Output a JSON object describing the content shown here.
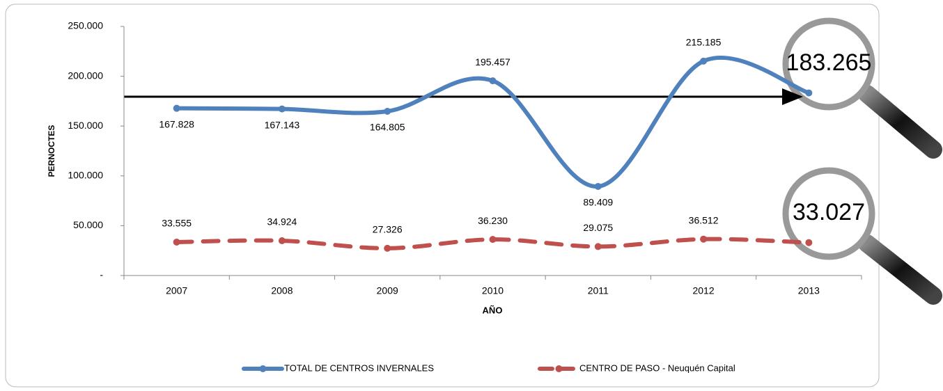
{
  "chart_data": {
    "type": "line",
    "x_label": "AÑO",
    "y_label": "PERNOCTES",
    "categories": [
      "2007",
      "2008",
      "2009",
      "2010",
      "2011",
      "2012",
      "2013"
    ],
    "series": [
      {
        "name": "TOTAL DE CENTROS INVERNALES",
        "color": "#4f81bd",
        "style": "solid",
        "values": [
          167828,
          167143,
          164805,
          195457,
          89409,
          215185,
          183265
        ],
        "value_labels": [
          "167.828",
          "167.143",
          "164.805",
          "195.457",
          "89.409",
          "215.185",
          "183.265"
        ]
      },
      {
        "name": "CENTRO DE PASO - Neuquén Capital",
        "color": "#c0504d",
        "style": "dashed",
        "values": [
          33555,
          34924,
          27326,
          36230,
          29075,
          36512,
          33027
        ],
        "value_labels": [
          "33.555",
          "34.924",
          "27.326",
          "36.230",
          "29.075",
          "36.512",
          "33.027"
        ]
      }
    ],
    "ylim": [
      0,
      250000
    ],
    "yticks": [
      {
        "value": 0,
        "label": "-"
      },
      {
        "value": 50000,
        "label": "50.000"
      },
      {
        "value": 100000,
        "label": "100.000"
      },
      {
        "value": 150000,
        "label": "150.000"
      },
      {
        "value": 200000,
        "label": "200.000"
      },
      {
        "value": 250000,
        "label": "250.000"
      }
    ],
    "legend": "bottom"
  }
}
